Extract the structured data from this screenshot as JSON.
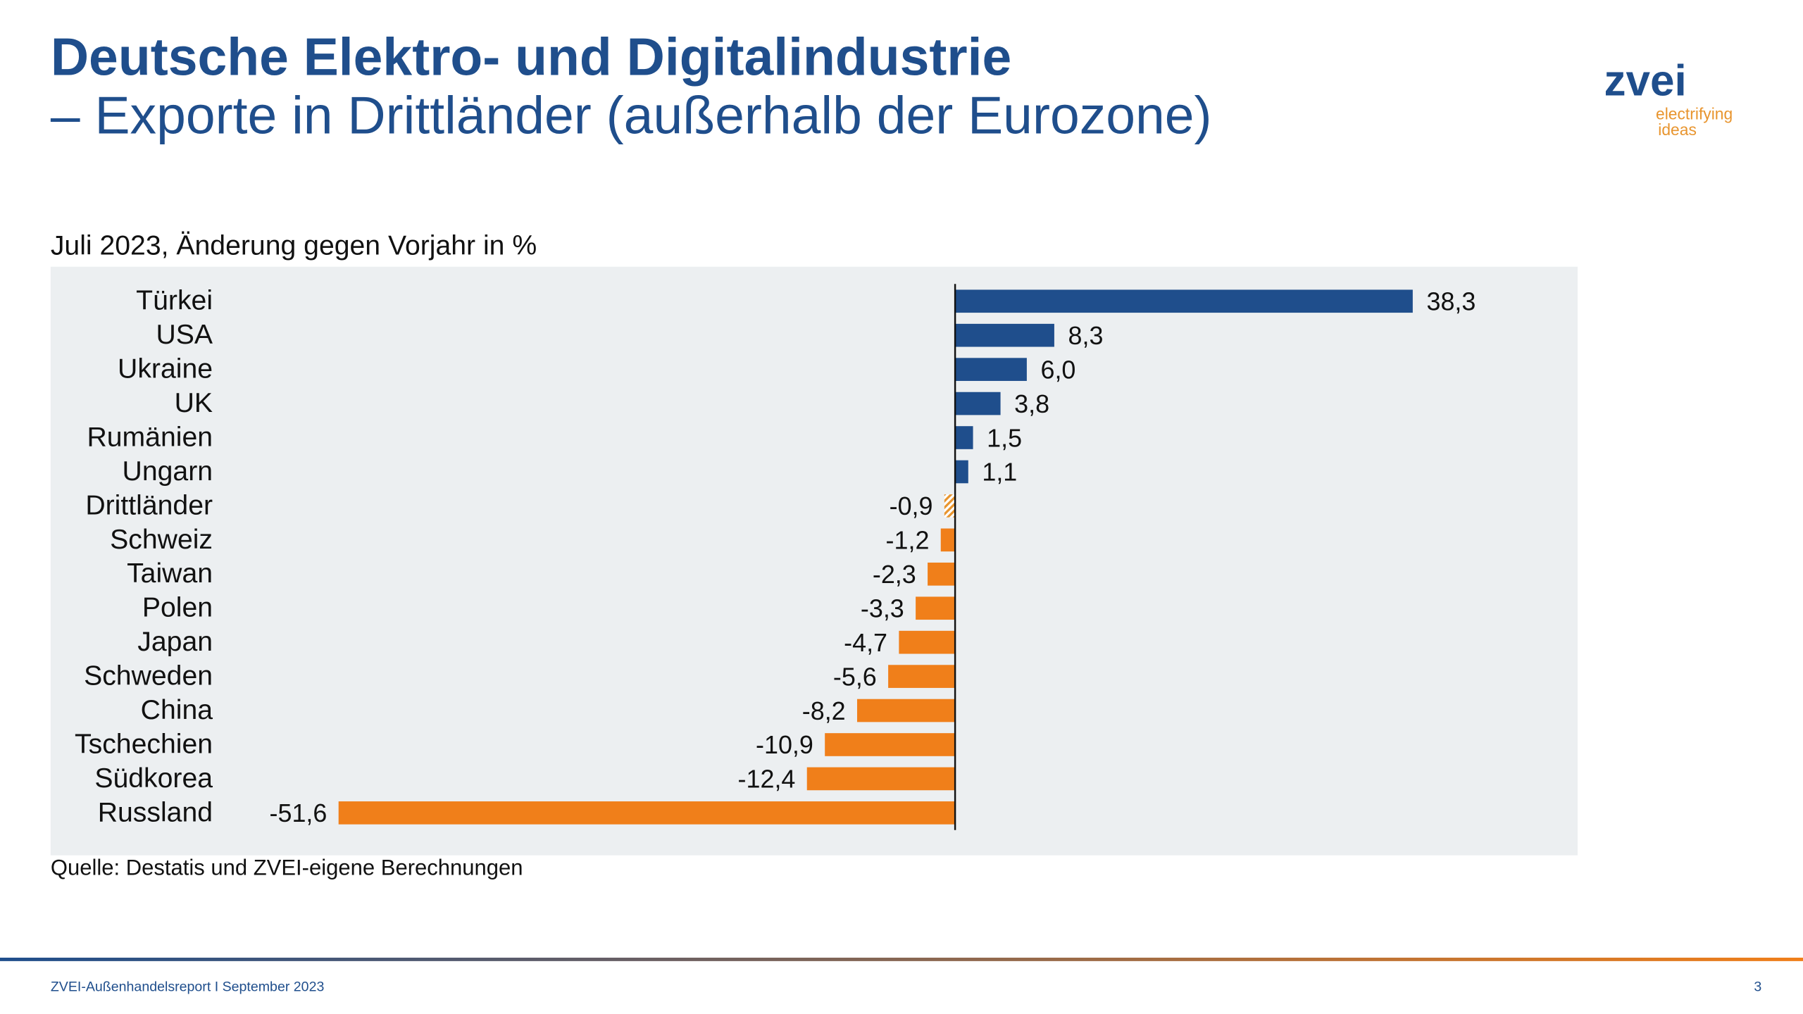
{
  "page": {
    "title": "Deutsche Elektro- und Digitalindustrie",
    "subtitle": "– Exporte in Drittländer (außerhalb der Eurozone)",
    "logo": "zvei",
    "logo_tagline_1": "electrifying",
    "logo_tagline_2": "ideas",
    "footer": "ZVEI-Außenhandelsreport I September 2023",
    "page_number": "3"
  },
  "chart_data": {
    "type": "hbar",
    "title": "Juli 2023, Änderung gegen Vorjahr in %",
    "source": "Quelle: Destatis und ZVEI-eigene Berechnungen",
    "categories": [
      "Türkei",
      "USA",
      "Ukraine",
      "UK",
      "Rumänien",
      "Ungarn",
      "Drittländer",
      "Schweiz",
      "Taiwan",
      "Polen",
      "Japan",
      "Schweden",
      "China",
      "Tschechien",
      "Südkorea",
      "Russland"
    ],
    "values": [
      38.3,
      8.3,
      6.0,
      3.8,
      1.5,
      1.1,
      -0.9,
      -1.2,
      -2.3,
      -3.3,
      -4.7,
      -5.6,
      -8.2,
      -10.9,
      -12.4,
      -51.6
    ],
    "value_labels": [
      "38,3",
      "8,3",
      "6,0",
      "3,8",
      "1,5",
      "1,1",
      "-0,9",
      "-1,2",
      "-2,3",
      "-3,3",
      "-4,7",
      "-5,6",
      "-8,2",
      "-10,9",
      "-12,4",
      "-51,6"
    ],
    "colors": [
      "#1f4e8c",
      "#1f4e8c",
      "#1f4e8c",
      "#1f4e8c",
      "#1f4e8c",
      "#1f4e8c",
      "#e8952f",
      "#f07f1a",
      "#f07f1a",
      "#f07f1a",
      "#f07f1a",
      "#f07f1a",
      "#f07f1a",
      "#f07f1a",
      "#f07f1a",
      "#f07f1a"
    ],
    "hatched": [
      false,
      false,
      false,
      false,
      false,
      false,
      true,
      false,
      false,
      false,
      false,
      false,
      false,
      false,
      false,
      false
    ],
    "xlim": [
      -75.7,
      52.1
    ]
  }
}
